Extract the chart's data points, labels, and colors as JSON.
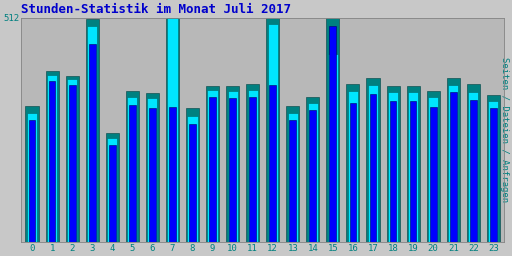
{
  "title": "Stunden-Statistik im Monat Juli 2017",
  "ylabel": "Seiten / Dateien / Anfragen",
  "xlabel_ticks": [
    0,
    1,
    2,
    3,
    4,
    5,
    6,
    7,
    8,
    9,
    10,
    11,
    12,
    13,
    14,
    15,
    16,
    17,
    18,
    19,
    20,
    21,
    22,
    23
  ],
  "ymax": 512,
  "ytick_label": "512",
  "bar_width": 0.65,
  "background_color": "#c8c8c8",
  "plot_bg_color": "#b8b8b8",
  "title_color": "#0000cc",
  "ylabel_color": "#008080",
  "tick_color": "#008080",
  "grid_color": "#aaaaaa",
  "colors_back_to_front": [
    "#008080",
    "#00e5ff",
    "#0000ff"
  ],
  "series": {
    "teal": [
      310,
      390,
      380,
      510,
      250,
      345,
      340,
      512,
      305,
      355,
      355,
      360,
      512,
      310,
      330,
      512,
      360,
      375,
      355,
      355,
      345,
      375,
      360,
      335
    ],
    "cyan": [
      295,
      382,
      372,
      492,
      238,
      332,
      328,
      512,
      288,
      348,
      345,
      348,
      498,
      295,
      318,
      430,
      345,
      358,
      342,
      342,
      330,
      358,
      342,
      322
    ],
    "blue": [
      278,
      368,
      358,
      452,
      222,
      312,
      305,
      308,
      270,
      332,
      328,
      332,
      358,
      278,
      302,
      492,
      318,
      338,
      322,
      322,
      308,
      342,
      325,
      305
    ]
  }
}
